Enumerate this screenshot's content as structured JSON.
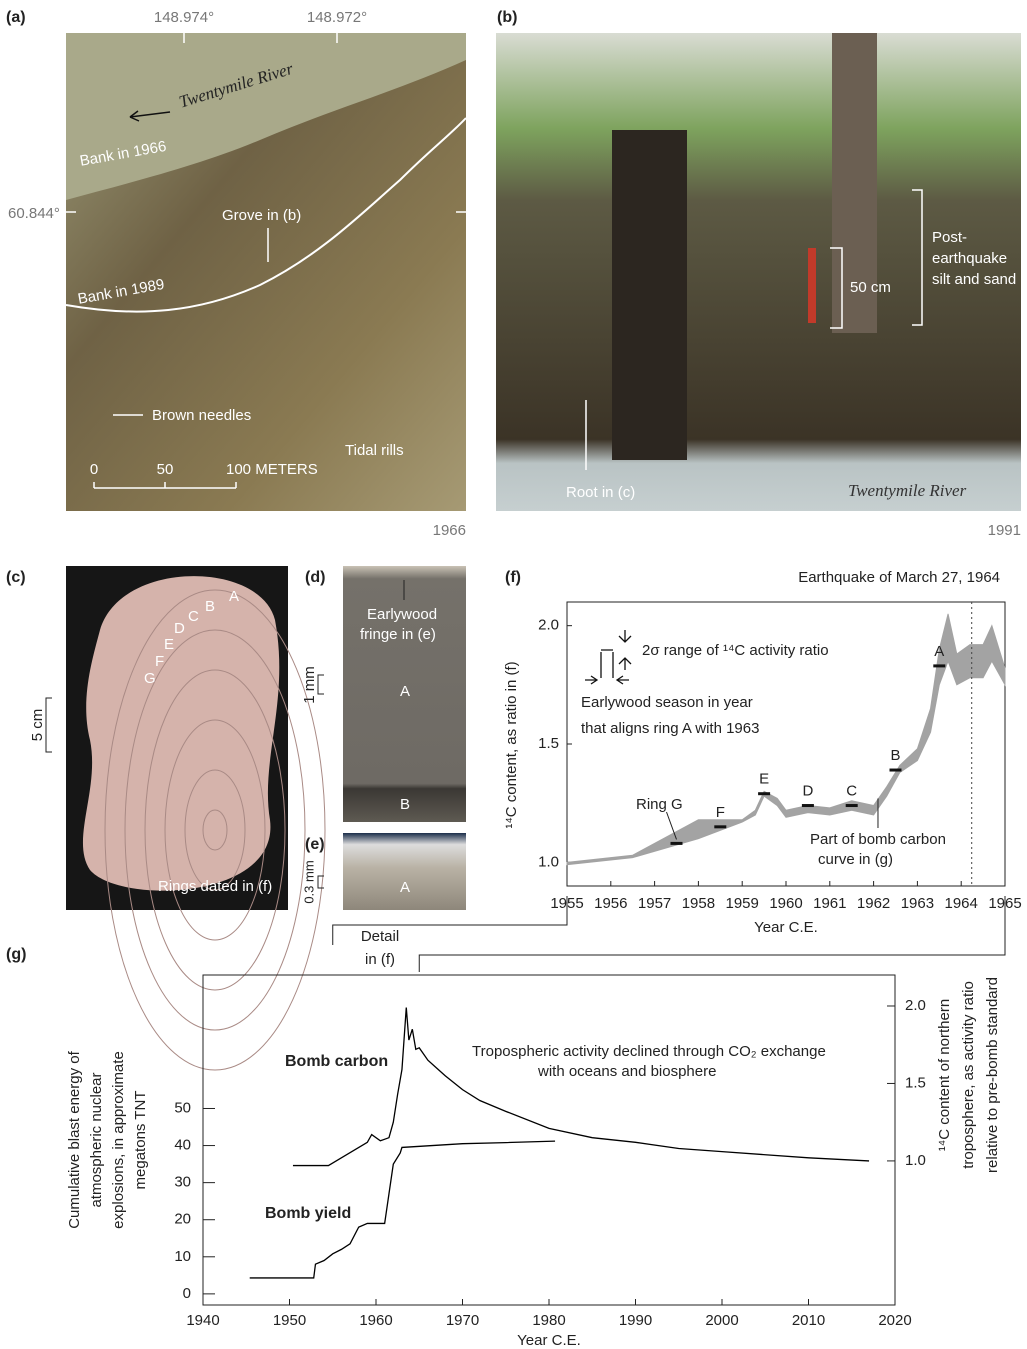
{
  "panels": {
    "a": {
      "label": "(a)",
      "lon_ticks": [
        "148.974°",
        "148.972°"
      ],
      "lat_tick": "60.844°",
      "river": "Twentymile River",
      "bank_1966": "Bank in 1966",
      "grove": "Grove in (b)",
      "bank_1989": "Bank in 1989",
      "needles": "Brown needles",
      "rills": "Tidal rills",
      "scale": [
        "0",
        "50",
        "100 METERS"
      ],
      "year": "1966"
    },
    "b": {
      "label": "(b)",
      "deposit": [
        "Post-",
        "earthquake",
        "silt and sand"
      ],
      "scale": "50 cm",
      "root": "Root in (c)",
      "river": "Twentymile River",
      "year": "1991"
    },
    "c": {
      "label": "(c)",
      "rings": [
        "A",
        "B",
        "C",
        "D",
        "E",
        "F",
        "G"
      ],
      "scale": "5 cm",
      "note": "Rings dated in (f)"
    },
    "d": {
      "label": "(d)",
      "fringe": [
        "Earlywood",
        "fringe in (e)"
      ],
      "scale": "1 mm",
      "rings": [
        "A",
        "B"
      ]
    },
    "e": {
      "label": "(e)",
      "scale": "0.3 mm",
      "ring": "A"
    }
  },
  "chart_data": [
    {
      "type": "area",
      "panel_label": "(f)",
      "xlabel": "Year C.E.",
      "ylabel": "¹⁴C content, as ratio in (f)",
      "xlim": [
        1955,
        1965
      ],
      "ylim": [
        0.9,
        2.1
      ],
      "xticks": [
        1955,
        1956,
        1957,
        1958,
        1959,
        1960,
        1961,
        1962,
        1963,
        1964,
        1965
      ],
      "yticks": [
        {
          "value": 1,
          "label": "1.0"
        },
        1.5,
        {
          "value": 2,
          "label": "2.0"
        }
      ],
      "color": "#a3a3a3",
      "x": [
        1955,
        1956.5,
        1958,
        1959,
        1959.3,
        1959.5,
        1959.8,
        1960,
        1960.5,
        1961,
        1961.5,
        1962,
        1962.3,
        1962.6,
        1963,
        1963.3,
        1963.5,
        1963.7,
        1963.9,
        1964.2,
        1964.5,
        1964.7,
        1965
      ],
      "upper": [
        1.0,
        1.03,
        1.18,
        1.18,
        1.22,
        1.3,
        1.27,
        1.22,
        1.24,
        1.23,
        1.26,
        1.24,
        1.32,
        1.41,
        1.48,
        1.65,
        1.9,
        2.05,
        1.88,
        1.92,
        1.92,
        2.0,
        1.82
      ],
      "lower": [
        0.99,
        1.02,
        1.1,
        1.17,
        1.2,
        1.28,
        1.24,
        1.19,
        1.21,
        1.2,
        1.22,
        1.2,
        1.28,
        1.38,
        1.43,
        1.55,
        1.75,
        1.85,
        1.75,
        1.78,
        1.78,
        1.85,
        1.75
      ],
      "rings": {
        "labels": [
          "A",
          "B",
          "C",
          "D",
          "E",
          "F",
          "G"
        ],
        "x": [
          1963.5,
          1962.5,
          1961.5,
          1960.5,
          1959.5,
          1958.5,
          1957.5
        ],
        "y": [
          1.83,
          1.39,
          1.24,
          1.24,
          1.29,
          1.15,
          1.08
        ]
      },
      "ring_note": "Ring G",
      "legend_lines": [
        "2σ range of ¹⁴C activity ratio",
        "Earlywood season in year",
        "that aligns ring A with 1963"
      ],
      "event": {
        "label": "Earthquake of March 27, 1964",
        "x": 1964.24
      },
      "annotation": [
        "Part of bomb carbon",
        "curve in (g)"
      ]
    },
    {
      "type": "line",
      "panel_label": "(g)",
      "xlabel": "Year C.E.",
      "ylabel": [
        "Cumulative blast energy of",
        "atmospheric nuclear",
        "explosions, in approximate",
        "megatons TNT"
      ],
      "y2label": [
        "¹⁴C content of northern",
        "troposphere, as activity ratio",
        "relative to pre-bomb standard"
      ],
      "xlim": [
        1940,
        2020
      ],
      "ylim": [
        -3,
        86
      ],
      "y2lim": [
        0.07,
        2.2
      ],
      "xticks": [
        1940,
        1950,
        1960,
        1970,
        1980,
        1990,
        2000,
        2010,
        2020
      ],
      "yticks": [
        0,
        10,
        20,
        30,
        40,
        50
      ],
      "y2ticks": [
        {
          "value": 1,
          "label": "1.0"
        },
        1.5,
        {
          "value": 2,
          "label": "2.0"
        }
      ],
      "series": [
        {
          "name": "Bomb carbon",
          "color": "#000000",
          "axis": "y2",
          "x": [
            1950.4,
            1954.5,
            1956,
            1957.5,
            1959,
            1959.5,
            1960.5,
            1961.5,
            1962,
            1962.5,
            1963,
            1963.5,
            1963.8,
            1964.2,
            1964.6,
            1965,
            1966,
            1967,
            1968,
            1970,
            1972,
            1975,
            1980,
            1985,
            1990,
            1995,
            2000,
            2005,
            2010,
            2017
          ],
          "values": [
            0.97,
            0.97,
            1.02,
            1.07,
            1.12,
            1.17,
            1.13,
            1.15,
            1.25,
            1.43,
            1.59,
            1.99,
            1.78,
            1.85,
            1.72,
            1.73,
            1.65,
            1.6,
            1.55,
            1.46,
            1.39,
            1.32,
            1.21,
            1.15,
            1.12,
            1.08,
            1.06,
            1.04,
            1.02,
            1.0
          ]
        },
        {
          "name": "Bomb yield",
          "color": "#000000",
          "x": [
            1945.4,
            1952.8,
            1953,
            1954,
            1955,
            1956,
            1957,
            1958,
            1959,
            1961,
            1961.5,
            1962,
            1962.8,
            1963,
            1970,
            1975,
            1980.7
          ],
          "values": [
            4.3,
            4.3,
            8,
            9,
            10.8,
            12,
            13.5,
            18,
            19,
            19,
            27,
            35,
            38,
            39.5,
            40.5,
            40.8,
            41.2
          ]
        }
      ],
      "annotation": [
        "Tropospheric activity declined through CO₂ exchange",
        "with oceans and biosphere"
      ],
      "detail": [
        "Detail",
        "in (f)"
      ]
    }
  ]
}
